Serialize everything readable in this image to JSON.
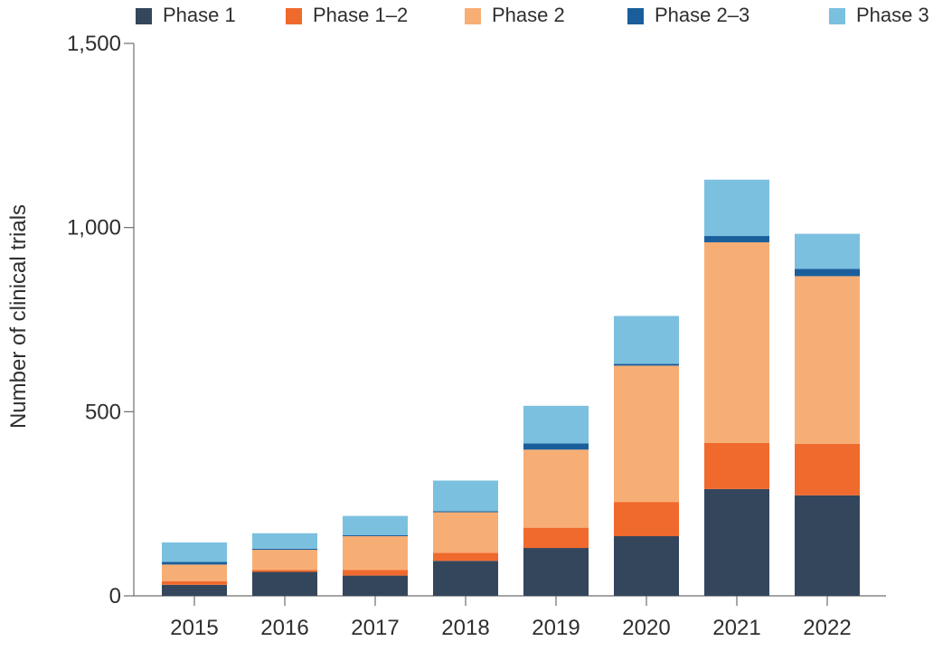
{
  "chart_data": {
    "type": "bar",
    "stacked": true,
    "categories": [
      "2015",
      "2016",
      "2017",
      "2018",
      "2019",
      "2020",
      "2021",
      "2022"
    ],
    "series": [
      {
        "name": "Phase 1",
        "color": "#34465C",
        "values": [
          30,
          65,
          55,
          95,
          130,
          162,
          290,
          273
        ]
      },
      {
        "name": "Phase 1–2",
        "color": "#F06A2D",
        "values": [
          10,
          5,
          15,
          22,
          55,
          93,
          125,
          140
        ]
      },
      {
        "name": "Phase 2",
        "color": "#F7AE74",
        "values": [
          45,
          55,
          92,
          110,
          212,
          370,
          545,
          455
        ]
      },
      {
        "name": "Phase 2–3",
        "color": "#1A5F9B",
        "values": [
          7,
          3,
          3,
          3,
          17,
          5,
          17,
          20
        ]
      },
      {
        "name": "Phase 3",
        "color": "#7CC0E0",
        "values": [
          53,
          42,
          52,
          83,
          102,
          130,
          153,
          95
        ]
      }
    ],
    "xlabel": "",
    "ylabel": "Number of clinical trials",
    "ylim": [
      0,
      1500
    ],
    "yticks": [
      0,
      500,
      1000,
      1500
    ],
    "ytick_labels": [
      "0",
      "500",
      "1,000",
      "1,500"
    ],
    "legend_position": "top",
    "grid": false
  }
}
